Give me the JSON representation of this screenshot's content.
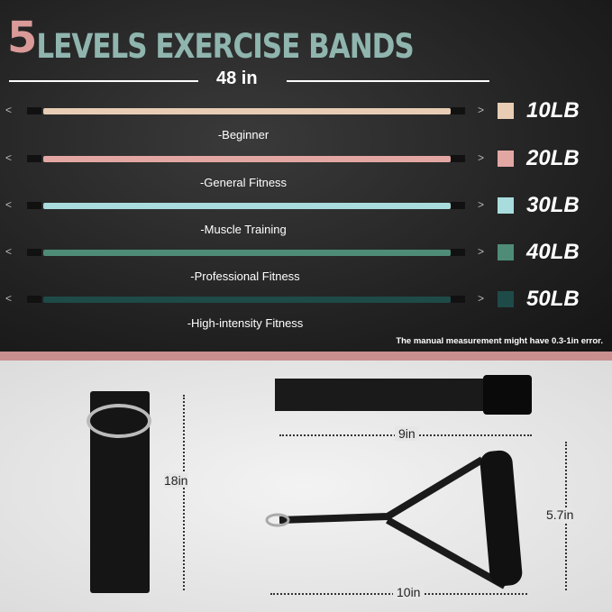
{
  "title": {
    "number": "5",
    "text": "LEVELS EXERCISE BANDS"
  },
  "length_label": "48 in",
  "bands": [
    {
      "weight": "10LB",
      "level": "-Beginner",
      "color": "#e8cdb4"
    },
    {
      "weight": "20LB",
      "level": "-General Fitness",
      "color": "#e3a7a3"
    },
    {
      "weight": "30LB",
      "level": "-Muscle Training",
      "color": "#a9dcdc"
    },
    {
      "weight": "40LB",
      "level": "-Professional  Fitness",
      "color": "#4f8c78"
    },
    {
      "weight": "50LB",
      "level": "-High-intensity Fitness",
      "color": "#1e4a48"
    }
  ],
  "note": "The manual measurement might have 0.3-1in error.",
  "accessories": {
    "door_anchor": "18in",
    "ankle_strap": "9in",
    "handle_height": "5.7in",
    "handle_width": "10in"
  }
}
